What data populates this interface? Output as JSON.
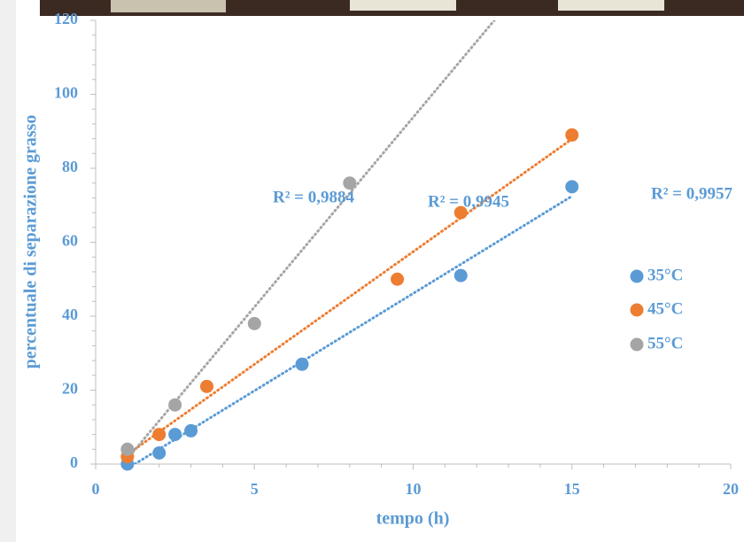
{
  "chart_data": {
    "type": "scatter",
    "xlabel": "tempo (h)",
    "ylabel": "percentuale di separazione grasso",
    "xlim": [
      0,
      20
    ],
    "xticks": [
      0,
      5,
      10,
      15,
      20
    ],
    "ylim": [
      0,
      120
    ],
    "yticks": [
      0,
      20,
      40,
      60,
      80,
      100,
      120
    ],
    "trendline": "linear",
    "legend": "right",
    "series": [
      {
        "name": "35°C",
        "color": "#5b9bd5",
        "x": [
          1,
          2,
          2.5,
          3,
          6.5,
          11.5,
          15
        ],
        "values": [
          0,
          3,
          8,
          9,
          27,
          51,
          75
        ],
        "trendline_label": "R² = 0,9957"
      },
      {
        "name": "45°C",
        "color": "#ed7d31",
        "x": [
          1,
          2,
          3.5,
          9.5,
          11.5,
          15
        ],
        "values": [
          2,
          8,
          21,
          50,
          68,
          89
        ],
        "trendline_label": "R² = 0,9945"
      },
      {
        "name": "55°C",
        "color": "#a5a5a5",
        "x": [
          1,
          2.5,
          5,
          8
        ],
        "values": [
          4,
          16,
          38,
          76
        ],
        "trendline_label": "R² = 0,9884"
      }
    ]
  }
}
